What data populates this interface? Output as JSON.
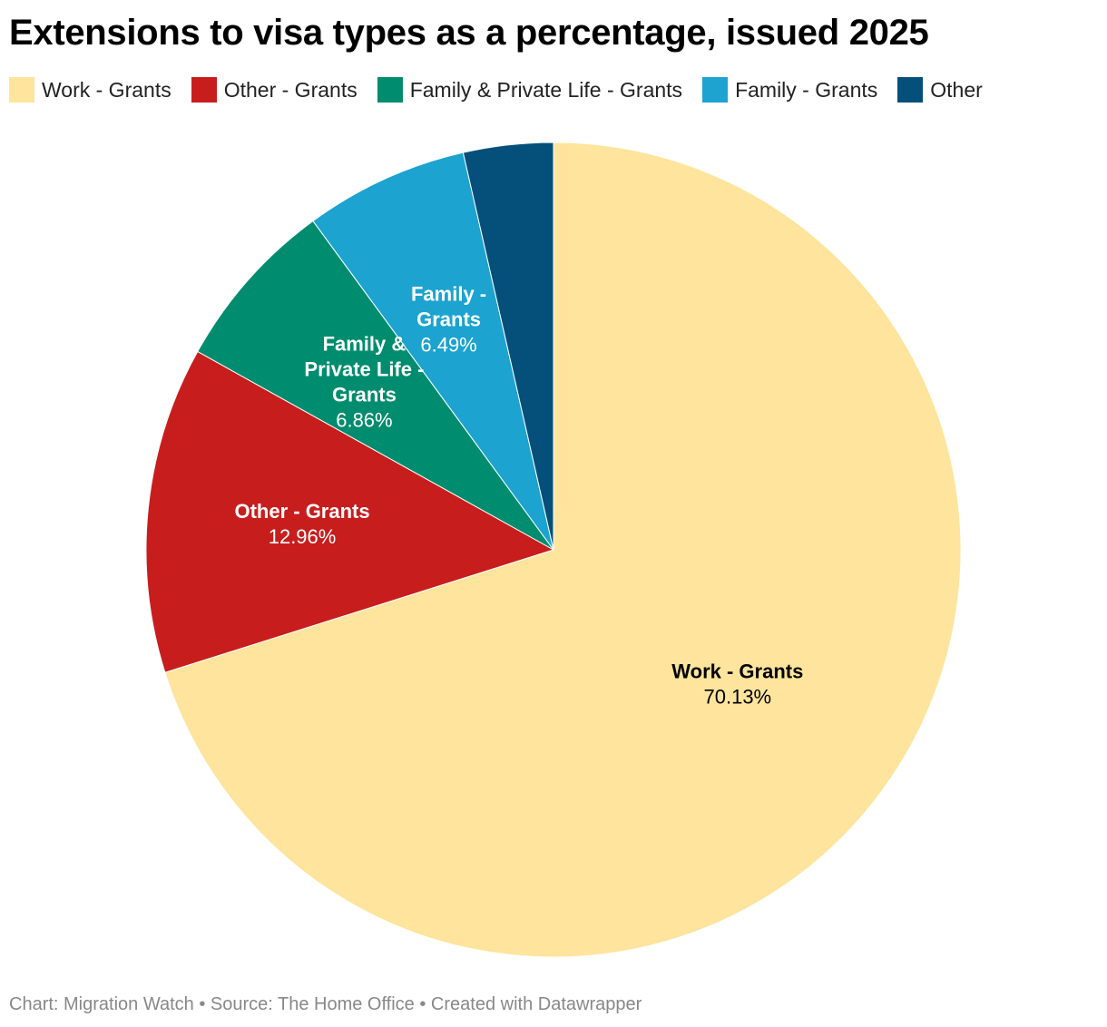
{
  "title": "Extensions to visa types as a percentage, issued 2025",
  "footer": "Chart: Migration Watch • Source: The Home Office • Created with Datawrapper",
  "chart_data": {
    "type": "pie",
    "title": "Extensions to visa types as a percentage, issued 2025",
    "legend_position": "top",
    "slices": [
      {
        "name": "Work - Grants",
        "value": 70.13,
        "value_label": "70.13%",
        "label_lines": [
          "Work - Grants"
        ],
        "color": "#fee49c",
        "text_color": "#000000",
        "show_label": true
      },
      {
        "name": "Other - Grants",
        "value": 12.96,
        "value_label": "12.96%",
        "label_lines": [
          "Other - Grants"
        ],
        "color": "#c71e1d",
        "text_color": "#ffffff",
        "show_label": true
      },
      {
        "name": "Family & Private Life - Grants",
        "value": 6.86,
        "value_label": "6.86%",
        "label_lines": [
          "Family &",
          "Private Life -",
          "Grants"
        ],
        "color": "#008c6e",
        "text_color": "#ffffff",
        "show_label": true
      },
      {
        "name": "Family - Grants",
        "value": 6.49,
        "value_label": "6.49%",
        "label_lines": [
          "Family -",
          "Grants"
        ],
        "color": "#1ca3d0",
        "text_color": "#ffffff",
        "show_label": true
      },
      {
        "name": "Other",
        "value": 3.56,
        "value_label": "",
        "label_lines": [],
        "color": "#05507a",
        "text_color": "#ffffff",
        "show_label": false
      }
    ]
  }
}
